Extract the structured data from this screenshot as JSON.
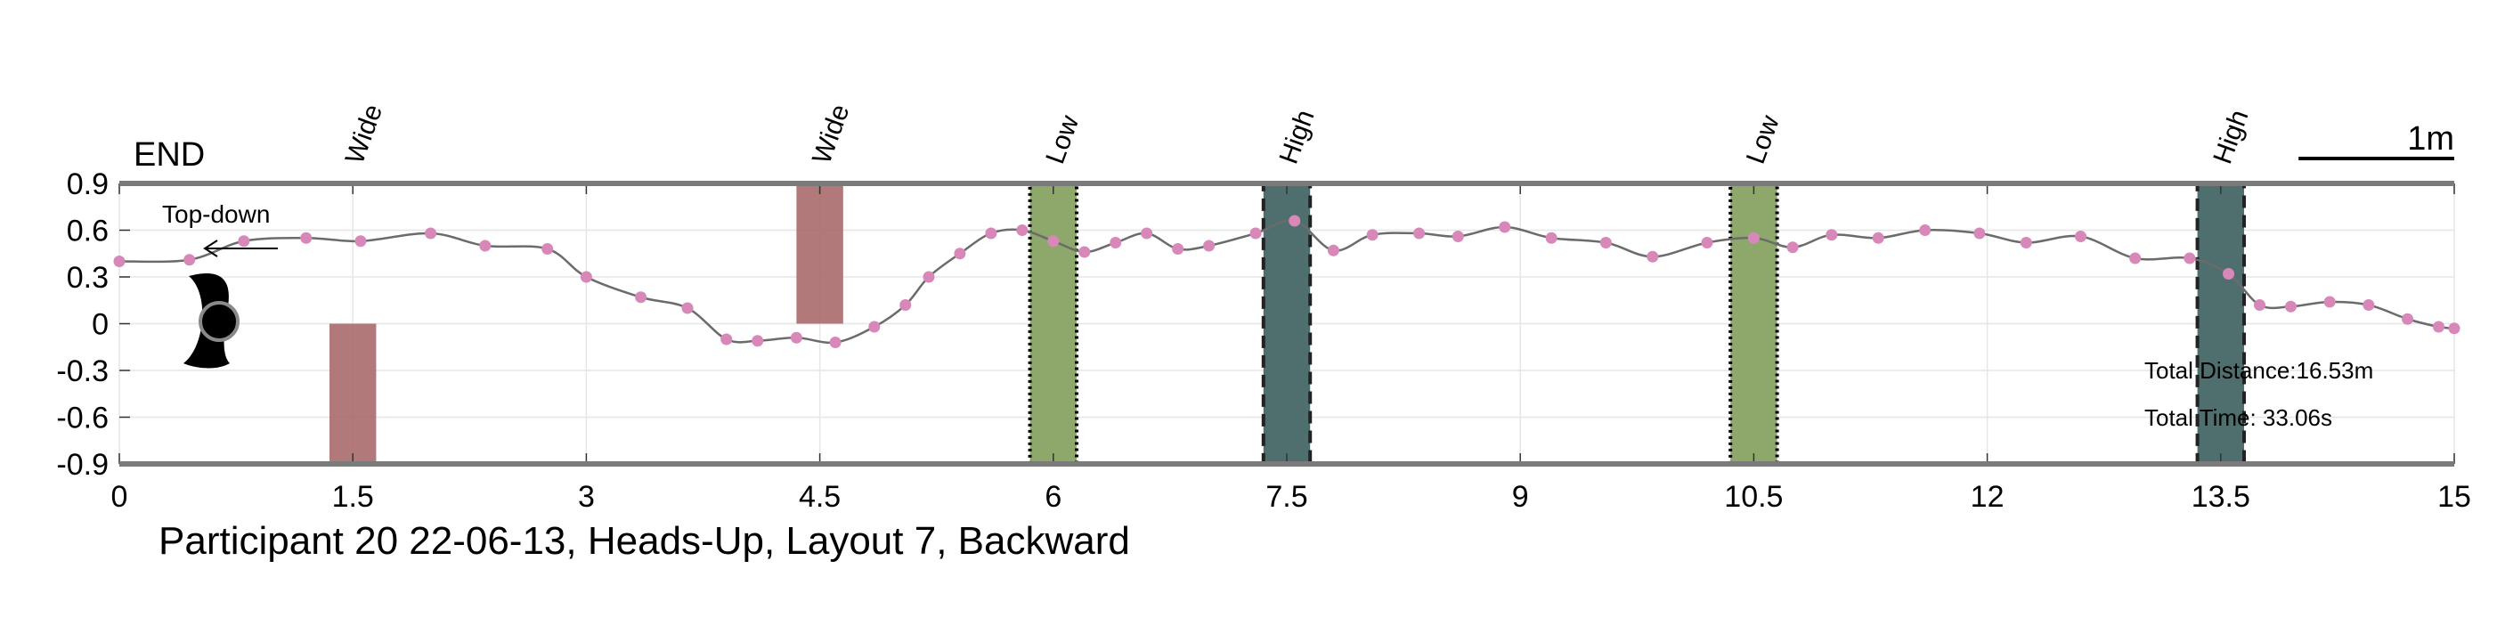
{
  "chart_data": {
    "type": "scatter",
    "title": "Participant 20 22-06-13, Heads-Up, Layout 7, Backward",
    "xlabel": "",
    "ylabel": "",
    "xlim": [
      0,
      15
    ],
    "ylim": [
      -0.9,
      0.9
    ],
    "xticks": [
      "0",
      "1.5",
      "3",
      "4.5",
      "6",
      "7.5",
      "9",
      "10.5",
      "12",
      "13.5",
      "15"
    ],
    "yticks": [
      "0.9",
      "0.6",
      "0.3",
      "0",
      "-0.3",
      "-0.6",
      "-0.9"
    ],
    "grid": true,
    "end_label": "END",
    "scale_label": "1m",
    "scale_length": 1,
    "view_label": "Top-down",
    "total_distance": "Total Distance:16.53m",
    "total_time": "Total Time: 33.06s",
    "obstacles": [
      {
        "label": "Wide",
        "type": "wide",
        "x0": 1.35,
        "x1": 1.65,
        "y0": -0.9,
        "y1": 0.0
      },
      {
        "label": "Wide",
        "type": "wide",
        "x0": 4.35,
        "x1": 4.65,
        "y0": 0.0,
        "y1": 0.9
      },
      {
        "label": "Low",
        "type": "low",
        "x0": 5.85,
        "x1": 6.15,
        "y0": -0.9,
        "y1": 0.9
      },
      {
        "label": "High",
        "type": "high",
        "x0": 7.35,
        "x1": 7.65,
        "y0": -0.9,
        "y1": 0.9
      },
      {
        "label": "Low",
        "type": "low",
        "x0": 10.35,
        "x1": 10.65,
        "y0": -0.9,
        "y1": 0.9
      },
      {
        "label": "High",
        "type": "high",
        "x0": 13.35,
        "x1": 13.65,
        "y0": -0.9,
        "y1": 0.9
      }
    ],
    "series": [
      {
        "x": [
          0.0,
          0.45,
          0.8,
          1.2,
          1.55,
          2.0,
          2.35,
          2.75,
          3.0,
          3.35,
          3.65,
          3.9,
          4.1,
          4.35,
          4.6,
          4.85,
          5.05,
          5.2,
          5.4,
          5.6,
          5.8,
          6.0,
          6.2,
          6.4,
          6.6,
          6.8,
          7.0,
          7.3,
          7.55,
          7.8,
          8.05,
          8.35,
          8.6,
          8.9,
          9.2,
          9.55,
          9.85,
          10.2,
          10.5,
          10.75,
          11.0,
          11.3,
          11.6,
          11.95,
          12.25,
          12.6,
          12.95,
          13.3,
          13.55,
          13.75,
          13.95,
          14.2,
          14.45,
          14.7,
          14.9,
          15.0
        ],
        "y": [
          0.4,
          0.41,
          0.53,
          0.55,
          0.53,
          0.58,
          0.5,
          0.48,
          0.3,
          0.17,
          0.1,
          -0.1,
          -0.11,
          -0.09,
          -0.12,
          -0.02,
          0.12,
          0.3,
          0.45,
          0.58,
          0.6,
          0.53,
          0.46,
          0.52,
          0.58,
          0.48,
          0.5,
          0.58,
          0.66,
          0.47,
          0.57,
          0.58,
          0.56,
          0.62,
          0.55,
          0.52,
          0.43,
          0.52,
          0.55,
          0.49,
          0.57,
          0.55,
          0.6,
          0.58,
          0.52,
          0.56,
          0.42,
          0.42,
          0.32,
          0.12,
          0.11,
          0.14,
          0.12,
          0.03,
          -0.02,
          -0.03
        ]
      }
    ],
    "colors": {
      "wide": "#a86a6a",
      "low": "#8da86a",
      "high": "#4f6e6e",
      "points": "#d888b8",
      "line": "#6b6b6b"
    }
  }
}
